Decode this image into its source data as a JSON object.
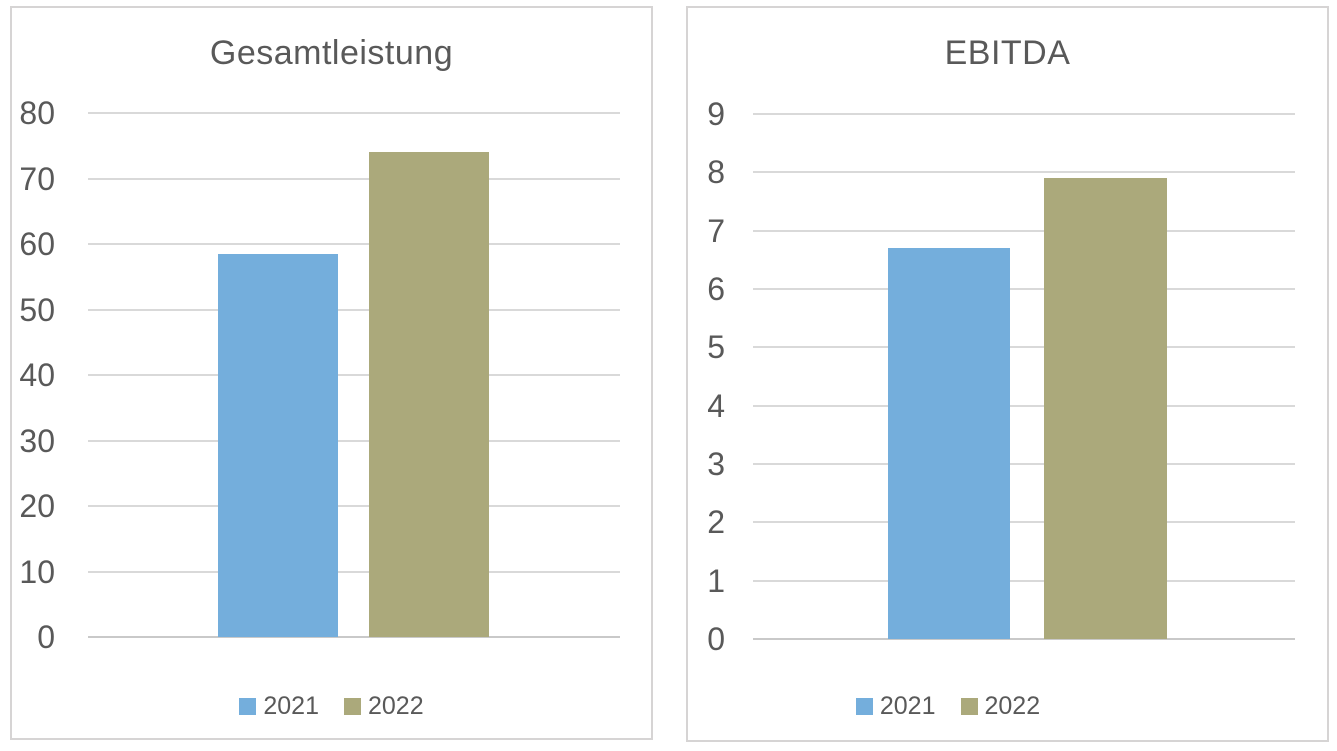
{
  "page": {
    "background": "#FFFFFF",
    "panel_border_color": "#D6D4D4",
    "text_color": "#595959",
    "gridline_color": "#D9D9D9"
  },
  "chart_data": [
    {
      "type": "bar",
      "title": "Gesamtleistung",
      "categories": [
        "2021",
        "2022"
      ],
      "values": [
        58.5,
        74
      ],
      "colors": [
        "#74AEDC",
        "#ABA97B"
      ],
      "legend": [
        "2021",
        "2022"
      ],
      "legend_position": "bottom",
      "xlabel": "",
      "ylabel": "",
      "ylim": [
        0,
        80
      ],
      "ytick_step": 10,
      "yticks": [
        0,
        10,
        20,
        30,
        40,
        50,
        60,
        70,
        80
      ],
      "grid": true
    },
    {
      "type": "bar",
      "title": "EBITDA",
      "categories": [
        "2021",
        "2022"
      ],
      "values": [
        6.7,
        7.9
      ],
      "colors": [
        "#74AEDC",
        "#ABA97B"
      ],
      "legend": [
        "2021",
        "2022"
      ],
      "legend_position": "bottom",
      "xlabel": "",
      "ylabel": "",
      "ylim": [
        0,
        9
      ],
      "ytick_step": 1,
      "yticks": [
        0,
        1,
        2,
        3,
        4,
        5,
        6,
        7,
        8,
        9
      ],
      "grid": true
    }
  ]
}
